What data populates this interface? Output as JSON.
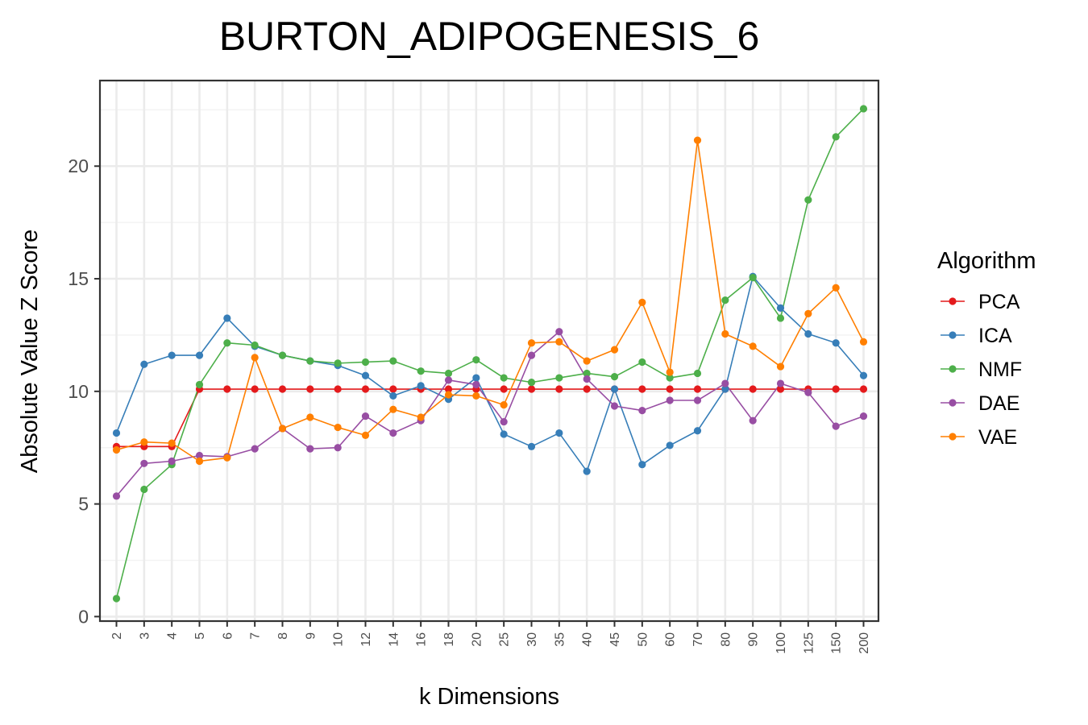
{
  "chart_data": {
    "type": "line",
    "title": "BURTON_ADIPOGENESIS_6",
    "xlabel": "k Dimensions",
    "ylabel": "Absolute Value Z Score",
    "categories": [
      "2",
      "3",
      "4",
      "5",
      "6",
      "7",
      "8",
      "9",
      "10",
      "12",
      "14",
      "16",
      "18",
      "20",
      "25",
      "30",
      "35",
      "40",
      "45",
      "50",
      "60",
      "70",
      "80",
      "90",
      "100",
      "125",
      "150",
      "200"
    ],
    "ylim": [
      -0.2,
      23.8
    ],
    "yticks": [
      0,
      5,
      10,
      15,
      20
    ],
    "grid": true,
    "legend": {
      "title": "Algorithm",
      "position": "right"
    },
    "series": [
      {
        "name": "PCA",
        "color": "#E41A1C",
        "values": [
          7.55,
          7.55,
          7.55,
          10.1,
          10.1,
          10.1,
          10.1,
          10.1,
          10.1,
          10.1,
          10.1,
          10.1,
          10.1,
          10.1,
          10.1,
          10.1,
          10.1,
          10.1,
          10.1,
          10.1,
          10.1,
          10.1,
          10.1,
          10.1,
          10.1,
          10.1,
          10.1,
          10.1
        ]
      },
      {
        "name": "ICA",
        "color": "#377EB8",
        "values": [
          8.15,
          11.2,
          11.6,
          11.6,
          13.25,
          12.0,
          11.6,
          11.35,
          11.15,
          10.7,
          9.8,
          10.25,
          9.65,
          10.6,
          8.1,
          7.55,
          8.15,
          6.45,
          10.1,
          6.75,
          7.6,
          8.25,
          10.1,
          15.1,
          13.7,
          12.55,
          12.15,
          10.7
        ]
      },
      {
        "name": "NMF",
        "color": "#4DAF4A",
        "values": [
          0.8,
          5.65,
          6.75,
          10.3,
          12.15,
          12.05,
          11.6,
          11.35,
          11.25,
          11.3,
          11.35,
          10.9,
          10.8,
          11.4,
          10.6,
          10.4,
          10.6,
          10.8,
          10.65,
          11.3,
          10.6,
          10.8,
          14.05,
          15.05,
          13.25,
          18.5,
          21.3,
          22.55
        ]
      },
      {
        "name": "DAE",
        "color": "#984EA3",
        "values": [
          5.35,
          6.8,
          6.9,
          7.15,
          7.1,
          7.45,
          8.35,
          7.45,
          7.5,
          8.9,
          8.15,
          8.7,
          10.5,
          10.3,
          8.65,
          11.6,
          12.65,
          10.55,
          9.35,
          9.15,
          9.6,
          9.6,
          10.35,
          8.7,
          10.35,
          9.95,
          8.45,
          8.9
        ]
      },
      {
        "name": "VAE",
        "color": "#FF7F00",
        "values": [
          7.4,
          7.75,
          7.7,
          6.9,
          7.05,
          11.5,
          8.35,
          8.85,
          8.4,
          8.05,
          9.2,
          8.85,
          9.85,
          9.8,
          9.4,
          12.15,
          12.2,
          11.35,
          11.85,
          13.95,
          10.85,
          21.15,
          12.55,
          12.0,
          11.1,
          13.45,
          14.6,
          12.2
        ]
      }
    ]
  }
}
